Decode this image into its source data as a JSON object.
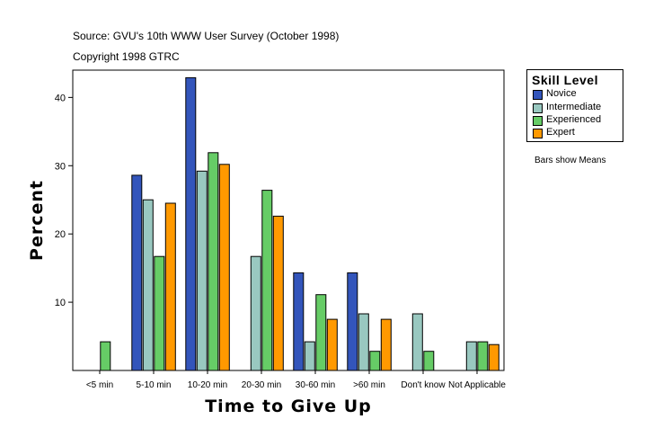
{
  "header": {
    "source": "Source: GVU's 10th WWW User Survey (October 1998)",
    "copyright": "Copyright 1998 GTRC"
  },
  "note": "Bars show Means",
  "legend": {
    "title": "Skill Level",
    "items": [
      {
        "label": "Novice",
        "color": "#3355bb"
      },
      {
        "label": "Intermediate",
        "color": "#99c8c0"
      },
      {
        "label": "Experienced",
        "color": "#66cc66"
      },
      {
        "label": "Expert",
        "color": "#ff9900"
      }
    ]
  },
  "chart_data": {
    "type": "bar",
    "title": "",
    "xlabel": "Time to Give Up",
    "ylabel": "Percent",
    "ylim": [
      0,
      44
    ],
    "yticks": [
      10,
      20,
      30,
      40
    ],
    "grid": false,
    "legend_position": "top-right",
    "categories": [
      "<5 min",
      "5-10 min",
      "10-20 min",
      "20-30 min",
      "30-60 min",
      ">60 min",
      "Don't know",
      "Not Applicable"
    ],
    "series": [
      {
        "name": "Novice",
        "color": "#3355bb",
        "values": [
          0,
          28.6,
          42.9,
          0,
          14.3,
          14.3,
          0,
          0
        ]
      },
      {
        "name": "Intermediate",
        "color": "#99c8c0",
        "values": [
          0,
          25.0,
          29.2,
          16.7,
          4.2,
          8.3,
          8.3,
          4.2
        ]
      },
      {
        "name": "Experienced",
        "color": "#66cc66",
        "values": [
          4.2,
          16.7,
          31.9,
          26.4,
          11.1,
          2.8,
          2.8,
          4.2
        ]
      },
      {
        "name": "Expert",
        "color": "#ff9900",
        "values": [
          0,
          24.5,
          30.2,
          22.6,
          7.5,
          7.5,
          0,
          3.8
        ]
      }
    ]
  }
}
